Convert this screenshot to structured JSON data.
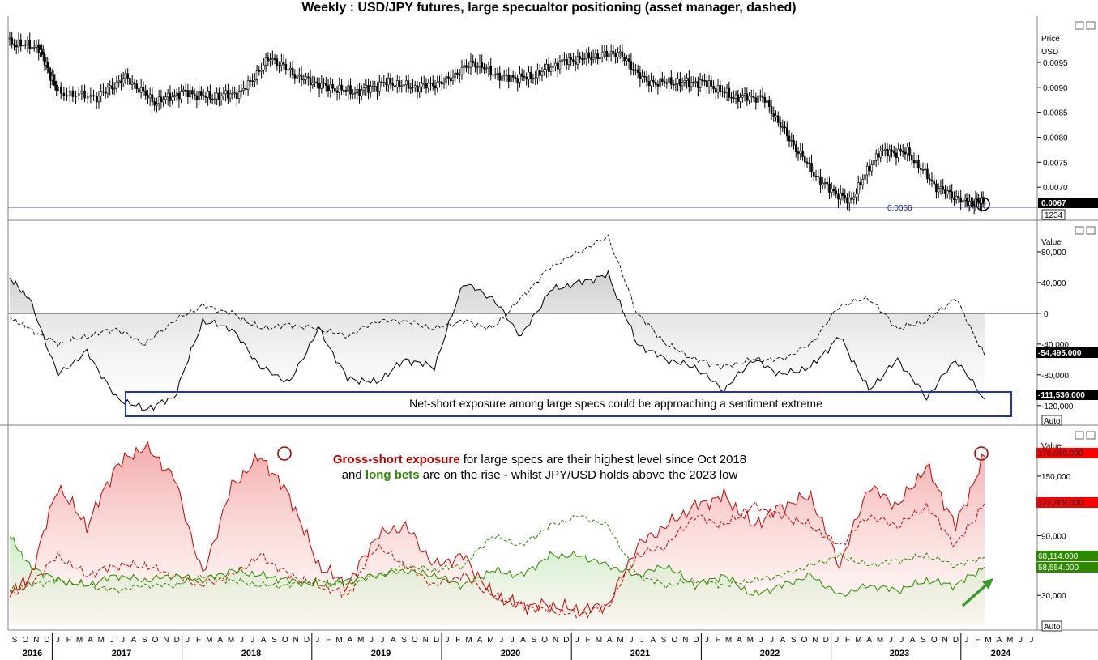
{
  "title": "Weekly : USD/JPY futures, large specualtor positioning (asset manager, dashed)",
  "chart_data": [
    {
      "type": "line",
      "panel": "price",
      "ylabel": "Price",
      "unit_label": "USD",
      "ylim": [
        0.0065,
        0.0101
      ],
      "ticks": [
        "0.0095",
        "0.0090",
        "0.0085",
        "0.0080",
        "0.0075",
        "0.0070"
      ],
      "last_value_label": "0.0067",
      "code_label": "1234",
      "support_label": "0.0066",
      "support_value": 0.0066,
      "x": [
        "2015-09",
        "2015-12",
        "2016-02",
        "2016-06",
        "2016-09",
        "2016-12",
        "2017-03",
        "2017-06",
        "2017-09",
        "2017-12",
        "2018-03",
        "2018-06",
        "2018-09",
        "2018-12",
        "2019-03",
        "2019-06",
        "2019-09",
        "2019-12",
        "2020-03",
        "2020-06",
        "2020-09",
        "2020-12",
        "2021-03",
        "2021-06",
        "2021-09",
        "2021-12",
        "2022-03",
        "2022-06",
        "2022-09",
        "2022-12",
        "2023-03",
        "2023-06",
        "2023-09",
        "2023-12",
        "2024-02"
      ],
      "values": [
        0.0099,
        0.0098,
        0.0089,
        0.0088,
        0.0092,
        0.0087,
        0.0089,
        0.0088,
        0.0089,
        0.0096,
        0.0092,
        0.009,
        0.0089,
        0.0091,
        0.009,
        0.0091,
        0.0095,
        0.0092,
        0.0092,
        0.0095,
        0.0096,
        0.0097,
        0.0091,
        0.0091,
        0.0091,
        0.0088,
        0.0088,
        0.0079,
        0.0071,
        0.0067,
        0.0077,
        0.0077,
        0.007,
        0.0067,
        0.0067
      ]
    },
    {
      "type": "area",
      "panel": "net-positioning",
      "ylabel": "Value",
      "ylim": [
        -135000,
        100000
      ],
      "ticks": [
        "80,000",
        "40,000",
        "0",
        "-40,000",
        "-80,000",
        "-120,000"
      ],
      "last_value_labels": [
        "-54,495.000",
        "-111,536.000"
      ],
      "axis_mode_label": "Auto",
      "annotation": "Net-short exposure among large specs could be approaching a sentiment extreme",
      "x": [
        "2015-09",
        "2015-11",
        "2016-02",
        "2016-05",
        "2016-08",
        "2016-11",
        "2017-02",
        "2017-05",
        "2017-08",
        "2017-11",
        "2018-02",
        "2018-05",
        "2018-08",
        "2018-11",
        "2019-02",
        "2019-05",
        "2019-08",
        "2019-11",
        "2020-02",
        "2020-05",
        "2020-08",
        "2020-11",
        "2021-02",
        "2021-05",
        "2021-08",
        "2021-11",
        "2022-02",
        "2022-05",
        "2022-08",
        "2022-11",
        "2023-02",
        "2023-05",
        "2023-08",
        "2023-11",
        "2024-02"
      ],
      "series": [
        {
          "values": [
            45000,
            20000,
            -80000,
            -50000,
            -110000,
            -125000,
            -110000,
            -10000,
            -20000,
            -70000,
            -90000,
            -20000,
            -85000,
            -90000,
            -60000,
            -70000,
            40000,
            20000,
            -30000,
            30000,
            40000,
            50000,
            -40000,
            -60000,
            -70000,
            -100000,
            -60000,
            -80000,
            -70000,
            -30000,
            -100000,
            -60000,
            -110000,
            -60000,
            -111536
          ]
        },
        {
          "dashed": true,
          "values": [
            -5000,
            -20000,
            -40000,
            -30000,
            -20000,
            -40000,
            -10000,
            10000,
            0,
            -20000,
            -15000,
            -20000,
            -30000,
            -10000,
            -10000,
            -20000,
            -10000,
            -20000,
            20000,
            60000,
            80000,
            100000,
            0,
            -40000,
            -60000,
            -70000,
            -60000,
            -60000,
            -40000,
            10000,
            20000,
            -20000,
            -10000,
            20000,
            -54495
          ]
        }
      ]
    },
    {
      "type": "area",
      "panel": "gross-exposure",
      "ylabel": "Value",
      "ylim": [
        0,
        185000
      ],
      "ticks": [
        "150,000",
        "90,000",
        "30,000"
      ],
      "last_value_labels": [
        "170,090.000",
        "122,609.000",
        "68,114.000",
        "58,554.000"
      ],
      "axis_mode_label": "Auto",
      "annotation_line1_bold": "Gross-short exposure",
      "annotation_line1_rest": " for large specs are their highest level since Oct 2018",
      "annotation_line2_pre": "and ",
      "annotation_line2_bold": "long bets",
      "annotation_line2_rest": " are on the rise - whilst JPY/USD holds above the 2023 low",
      "x": [
        "2015-09",
        "2015-11",
        "2016-02",
        "2016-05",
        "2016-08",
        "2016-11",
        "2017-02",
        "2017-05",
        "2017-08",
        "2017-11",
        "2018-02",
        "2018-05",
        "2018-08",
        "2018-11",
        "2019-02",
        "2019-05",
        "2019-08",
        "2019-11",
        "2020-02",
        "2020-05",
        "2020-08",
        "2020-11",
        "2021-02",
        "2021-05",
        "2021-08",
        "2021-11",
        "2022-02",
        "2022-05",
        "2022-08",
        "2022-11",
        "2023-02",
        "2023-05",
        "2023-08",
        "2023-11",
        "2024-02"
      ],
      "series": [
        {
          "color": "#cc0000",
          "values": [
            35000,
            45000,
            140000,
            100000,
            160000,
            180000,
            150000,
            50000,
            140000,
            170000,
            130000,
            60000,
            40000,
            90000,
            100000,
            60000,
            70000,
            30000,
            20000,
            20000,
            15000,
            20000,
            80000,
            100000,
            120000,
            130000,
            100000,
            120000,
            130000,
            60000,
            140000,
            120000,
            160000,
            100000,
            170090
          ]
        },
        {
          "color": "#cc0000",
          "dashed": true,
          "values": [
            30000,
            40000,
            70000,
            50000,
            60000,
            60000,
            50000,
            40000,
            50000,
            70000,
            50000,
            40000,
            30000,
            80000,
            60000,
            40000,
            50000,
            30000,
            20000,
            15000,
            10000,
            20000,
            70000,
            80000,
            110000,
            100000,
            120000,
            110000,
            100000,
            80000,
            110000,
            100000,
            120000,
            80000,
            122609
          ]
        },
        {
          "color": "#2d8a00",
          "values": [
            90000,
            60000,
            45000,
            40000,
            50000,
            45000,
            50000,
            45000,
            55000,
            50000,
            45000,
            40000,
            45000,
            50000,
            55000,
            50000,
            40000,
            55000,
            50000,
            70000,
            70000,
            60000,
            50000,
            60000,
            40000,
            50000,
            30000,
            40000,
            50000,
            30000,
            40000,
            35000,
            45000,
            40000,
            58554
          ]
        },
        {
          "color": "#2d8a00",
          "dashed": true,
          "values": [
            35000,
            40000,
            45000,
            40000,
            35000,
            40000,
            40000,
            50000,
            45000,
            40000,
            40000,
            45000,
            40000,
            50000,
            60000,
            55000,
            60000,
            90000,
            80000,
            100000,
            110000,
            100000,
            50000,
            40000,
            45000,
            40000,
            45000,
            50000,
            60000,
            70000,
            60000,
            65000,
            70000,
            60000,
            68114
          ]
        }
      ]
    }
  ],
  "time_axis": {
    "months": [
      "S",
      "O",
      "N",
      "D",
      "J",
      "F",
      "M",
      "A",
      "M",
      "J",
      "J",
      "A",
      "S",
      "O",
      "N",
      "D",
      "J",
      "F",
      "M",
      "A",
      "M",
      "J",
      "J",
      "A",
      "S",
      "O",
      "N",
      "D",
      "J",
      "F",
      "M",
      "A",
      "M",
      "J",
      "J",
      "A",
      "S",
      "O",
      "N",
      "D",
      "J",
      "F",
      "M",
      "A",
      "M",
      "J",
      "J",
      "A",
      "S",
      "O",
      "N",
      "D",
      "J",
      "F",
      "M",
      "A",
      "M",
      "J",
      "J",
      "A",
      "S",
      "O",
      "N",
      "D",
      "J",
      "F",
      "M",
      "A",
      "M",
      "J",
      "J",
      "A",
      "S",
      "O",
      "N",
      "D",
      "J",
      "F",
      "M",
      "A",
      "M",
      "J",
      "J",
      "A",
      "S",
      "O",
      "N",
      "D",
      "J",
      "F",
      "M",
      "A",
      "M",
      "J",
      "J"
    ],
    "years": [
      "2016",
      "2017",
      "2018",
      "2019",
      "2020",
      "2021",
      "2022",
      "2023",
      "2024"
    ]
  },
  "colors": {
    "gross_short": "#cc0000",
    "long": "#2d8a00",
    "box": "#1a2fd4",
    "support": "#1a237e",
    "label_bg": "#000000",
    "red_label_bg": "#ff0000",
    "green_label_bg": "#2d8a00"
  }
}
